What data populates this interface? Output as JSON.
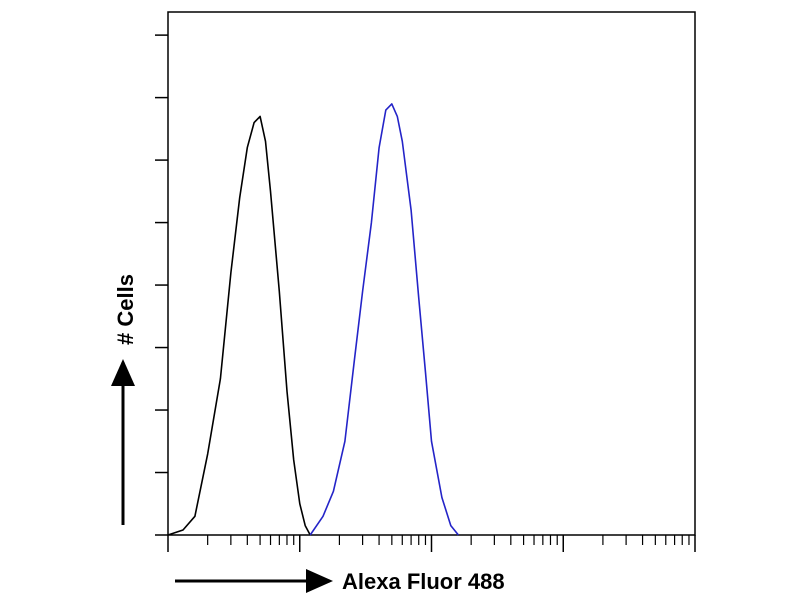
{
  "chart_data": {
    "type": "line",
    "xscale": "log",
    "xlabel": "Alexa Fluor 488",
    "ylabel": "# Cells",
    "xlim": [
      1,
      10000
    ],
    "xticks": [
      1,
      10,
      100,
      1000,
      10000
    ],
    "xminorticks": [
      2,
      3,
      4,
      5,
      6,
      7,
      8,
      9,
      20,
      30,
      40,
      50,
      60,
      70,
      80,
      90,
      200,
      300,
      400,
      500,
      600,
      700,
      800,
      900,
      2000,
      3000,
      4000,
      5000,
      6000,
      7000,
      8000,
      9000
    ],
    "ylim": [
      0,
      8.37
    ],
    "yticks": [
      0,
      1,
      2,
      3,
      4,
      5,
      6,
      7,
      8
    ],
    "series": [
      {
        "color": "#000000",
        "x": [
          1,
          1.3,
          1.6,
          2,
          2.5,
          3,
          3.5,
          4,
          4.5,
          5,
          5.5,
          6,
          7,
          8,
          9,
          10,
          11,
          12
        ],
        "values": [
          0,
          0.08,
          0.3,
          1.3,
          2.5,
          4.2,
          5.4,
          6.2,
          6.6,
          6.7,
          6.3,
          5.5,
          3.9,
          2.3,
          1.2,
          0.5,
          0.15,
          0
        ]
      },
      {
        "color": "#2424c8",
        "x": [
          12,
          15,
          18,
          22,
          26,
          30,
          35,
          40,
          45,
          50,
          55,
          60,
          70,
          80,
          90,
          100,
          120,
          140,
          160
        ],
        "values": [
          0,
          0.3,
          0.7,
          1.5,
          2.8,
          3.9,
          5.0,
          6.2,
          6.8,
          6.9,
          6.7,
          6.3,
          5.2,
          3.8,
          2.6,
          1.5,
          0.6,
          0.15,
          0
        ]
      }
    ]
  }
}
